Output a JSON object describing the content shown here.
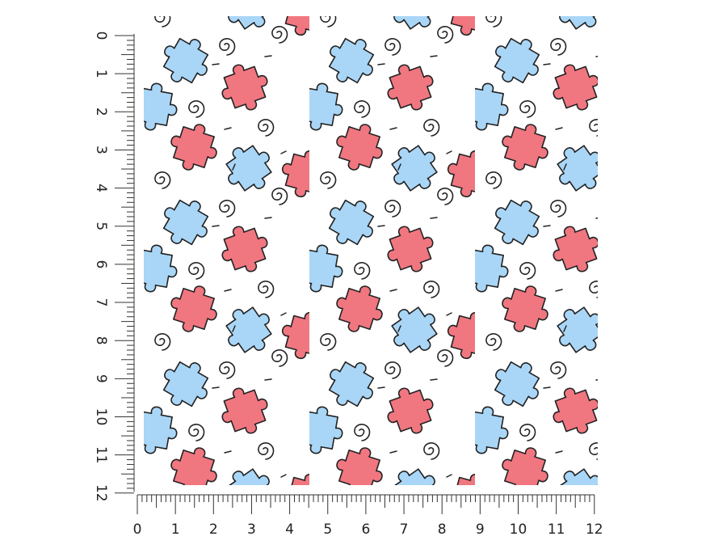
{
  "rulers": {
    "vertical": {
      "labels": [
        "0",
        "1",
        "2",
        "3",
        "4",
        "5",
        "6",
        "7",
        "8",
        "9",
        "10",
        "11",
        "12"
      ]
    },
    "horizontal": {
      "labels": [
        "0",
        "1",
        "2",
        "3",
        "4",
        "5",
        "6",
        "7",
        "8",
        "9",
        "10",
        "11",
        "12"
      ]
    }
  }
}
